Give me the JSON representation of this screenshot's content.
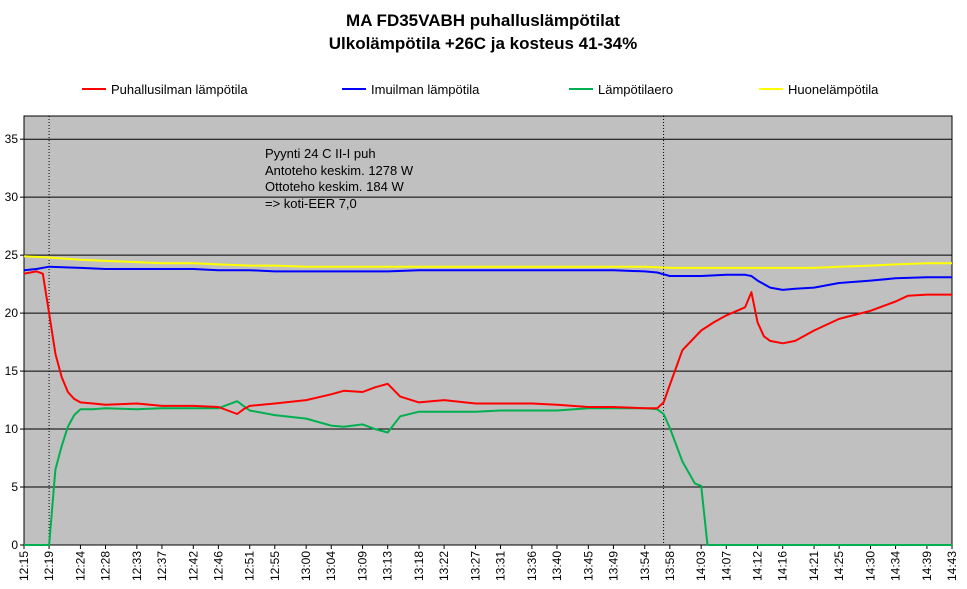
{
  "chart_data": {
    "type": "line",
    "title": "MA FD35VABH puhalluslämpötilat",
    "subtitle": "Ulkolämpötila +26C ja kosteus 41-34%",
    "xlabel": "",
    "ylabel": "",
    "ylim": [
      0,
      37
    ],
    "yticks": [
      "0",
      "5",
      "10",
      "15",
      "20",
      "25",
      "30",
      "35"
    ],
    "xlim": [
      "12:15",
      "14:43"
    ],
    "xticks": [
      "12:15",
      "12:19",
      "12:24",
      "12:28",
      "12:33",
      "12:37",
      "12:42",
      "12:46",
      "12:51",
      "12:55",
      "13:00",
      "13:04",
      "13:09",
      "13:13",
      "13:18",
      "13:22",
      "13:27",
      "13:31",
      "13:36",
      "13:40",
      "13:45",
      "13:49",
      "13:54",
      "13:58",
      "14:03",
      "14:07",
      "14:12",
      "14:16",
      "14:21",
      "14:25",
      "14:30",
      "14:34",
      "14:39",
      "14:43"
    ],
    "grid": true,
    "legend_position": "top",
    "background": "#c0c0c0",
    "vlines": [
      "12:19",
      "13:57"
    ],
    "annotation": [
      "Pyynti 24 C II-I  puh",
      "Antoteho keskim. 1278 W",
      "Ottoteho keskim. 184 W",
      "=> koti-EER 7,0"
    ],
    "series": [
      {
        "name": "Puhallusilman lämpötila",
        "color": "#ff0000",
        "x": [
          "12:15",
          "12:17",
          "12:18",
          "12:19",
          "12:20",
          "12:21",
          "12:22",
          "12:23",
          "12:24",
          "12:26",
          "12:28",
          "12:33",
          "12:37",
          "12:42",
          "12:46",
          "12:49",
          "12:50",
          "12:51",
          "12:55",
          "13:00",
          "13:04",
          "13:06",
          "13:09",
          "13:11",
          "13:13",
          "13:15",
          "13:18",
          "13:22",
          "13:27",
          "13:31",
          "13:36",
          "13:40",
          "13:45",
          "13:49",
          "13:54",
          "13:56",
          "13:57",
          "13:58",
          "14:00",
          "14:03",
          "14:05",
          "14:07",
          "14:10",
          "14:11",
          "14:12",
          "14:13",
          "14:14",
          "14:16",
          "14:18",
          "14:21",
          "14:25",
          "14:30",
          "14:34",
          "14:36",
          "14:39",
          "14:43"
        ],
        "values": [
          23.4,
          23.6,
          23.4,
          20,
          16.5,
          14.5,
          13.2,
          12.6,
          12.3,
          12.2,
          12.1,
          12.2,
          12,
          12,
          11.9,
          11.3,
          11.7,
          12,
          12.2,
          12.5,
          13,
          13.3,
          13.2,
          13.6,
          13.9,
          12.8,
          12.3,
          12.5,
          12.2,
          12.2,
          12.2,
          12.1,
          11.9,
          11.9,
          11.8,
          11.8,
          12.3,
          13.8,
          16.8,
          18.5,
          19.2,
          19.8,
          20.5,
          21.8,
          19.2,
          18,
          17.6,
          17.4,
          17.6,
          18.5,
          19.5,
          20.2,
          21,
          21.5,
          21.6,
          21.6
        ]
      },
      {
        "name": "Imuilman lämpötila",
        "color": "#0000ff",
        "x": [
          "12:15",
          "12:17",
          "12:19",
          "12:24",
          "12:28",
          "12:33",
          "12:37",
          "12:42",
          "12:46",
          "12:51",
          "12:55",
          "13:00",
          "13:04",
          "13:09",
          "13:13",
          "13:18",
          "13:22",
          "13:27",
          "13:31",
          "13:36",
          "13:40",
          "13:45",
          "13:49",
          "13:54",
          "13:56",
          "13:58",
          "14:03",
          "14:07",
          "14:10",
          "14:11",
          "14:12",
          "14:14",
          "14:16",
          "14:18",
          "14:21",
          "14:25",
          "14:30",
          "14:34",
          "14:39",
          "14:43"
        ],
        "values": [
          23.7,
          23.8,
          24,
          23.9,
          23.8,
          23.8,
          23.8,
          23.8,
          23.7,
          23.7,
          23.6,
          23.6,
          23.6,
          23.6,
          23.6,
          23.7,
          23.7,
          23.7,
          23.7,
          23.7,
          23.7,
          23.7,
          23.7,
          23.6,
          23.5,
          23.2,
          23.2,
          23.3,
          23.3,
          23.2,
          22.8,
          22.2,
          22,
          22.1,
          22.2,
          22.6,
          22.8,
          23,
          23.1,
          23.1
        ]
      },
      {
        "name": "Lämpötilaero",
        "color": "#00b050",
        "x": [
          "12:15",
          "12:18",
          "12:19",
          "12:20",
          "12:21",
          "12:22",
          "12:23",
          "12:24",
          "12:26",
          "12:28",
          "12:33",
          "12:37",
          "12:42",
          "12:46",
          "12:49",
          "12:50",
          "12:51",
          "12:55",
          "13:00",
          "13:04",
          "13:06",
          "13:09",
          "13:11",
          "13:13",
          "13:15",
          "13:18",
          "13:22",
          "13:27",
          "13:31",
          "13:36",
          "13:40",
          "13:45",
          "13:49",
          "13:54",
          "13:56",
          "13:57",
          "13:58",
          "14:00",
          "14:02",
          "14:03",
          "14:04",
          "14:07",
          "14:12",
          "14:16",
          "14:21",
          "14:25",
          "14:30",
          "14:34",
          "14:39",
          "14:43"
        ],
        "values": [
          0,
          0,
          0,
          6.5,
          8.5,
          10.2,
          11.2,
          11.7,
          11.7,
          11.8,
          11.7,
          11.8,
          11.8,
          11.8,
          12.4,
          12,
          11.6,
          11.2,
          10.9,
          10.3,
          10.2,
          10.4,
          10,
          9.7,
          11.1,
          11.5,
          11.5,
          11.5,
          11.6,
          11.6,
          11.6,
          11.8,
          11.8,
          11.8,
          11.7,
          11.3,
          10.1,
          7.2,
          5.3,
          5.1,
          0,
          0,
          0,
          0,
          0,
          0,
          0,
          0,
          0,
          0
        ]
      },
      {
        "name": "Huonelämpötila",
        "color": "#ffff00",
        "x": [
          "12:15",
          "12:19",
          "12:24",
          "12:28",
          "12:33",
          "12:37",
          "12:42",
          "12:46",
          "12:51",
          "12:55",
          "13:00",
          "13:04",
          "13:09",
          "13:13",
          "13:18",
          "13:22",
          "13:27",
          "13:31",
          "13:36",
          "13:40",
          "13:45",
          "13:49",
          "13:54",
          "13:58",
          "14:03",
          "14:07",
          "14:12",
          "14:16",
          "14:21",
          "14:25",
          "14:30",
          "14:34",
          "14:39",
          "14:43"
        ],
        "values": [
          24.9,
          24.8,
          24.6,
          24.5,
          24.4,
          24.3,
          24.3,
          24.2,
          24.1,
          24.1,
          24,
          24,
          24,
          24,
          24,
          24,
          24,
          24,
          24,
          24,
          24,
          24,
          24,
          23.9,
          23.9,
          23.9,
          23.9,
          23.9,
          23.9,
          24,
          24.1,
          24.2,
          24.3,
          24.3
        ]
      }
    ]
  }
}
